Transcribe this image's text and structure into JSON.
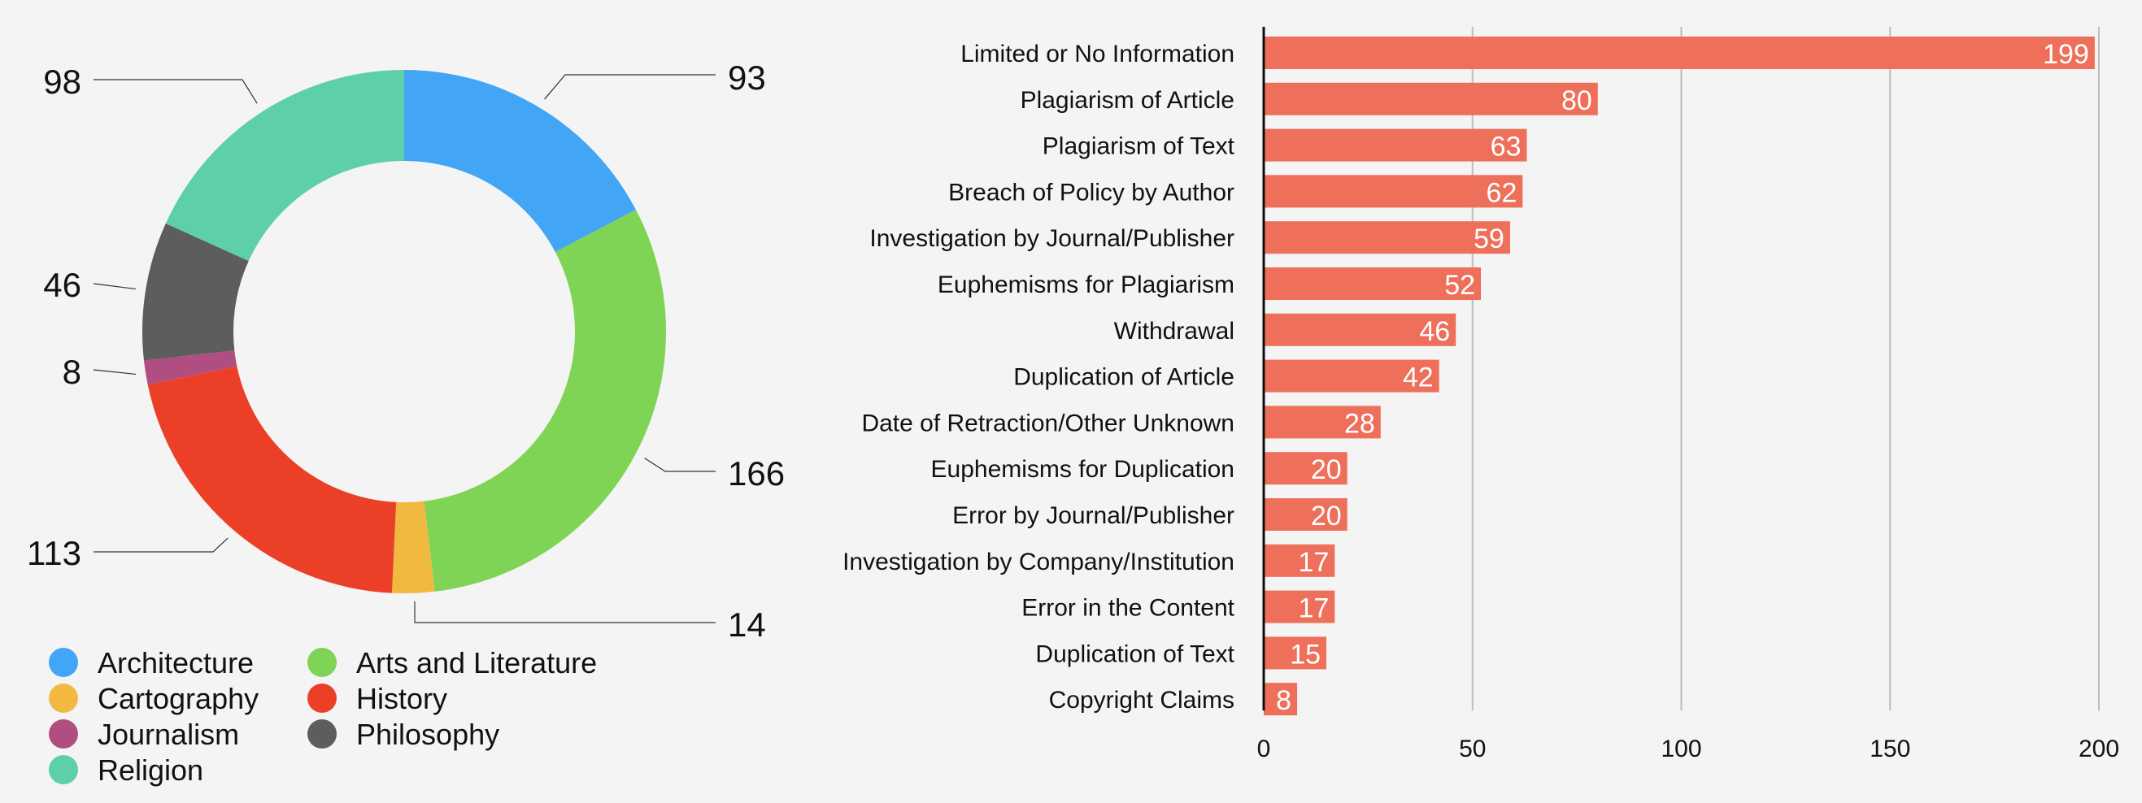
{
  "chart_data": [
    {
      "type": "pie",
      "donut": true,
      "slices": [
        {
          "label": "Architecture",
          "value": 93,
          "color": "#42a5f5"
        },
        {
          "label": "Arts and Literature",
          "value": 166,
          "color": "#80d455"
        },
        {
          "label": "Cartography",
          "value": 14,
          "color": "#f2b941"
        },
        {
          "label": "History",
          "value": 113,
          "color": "#ec3f28"
        },
        {
          "label": "Journalism",
          "value": 8,
          "color": "#b04e82"
        },
        {
          "label": "Philosophy",
          "value": 46,
          "color": "#5d5d5d"
        },
        {
          "label": "Religion",
          "value": 98,
          "color": "#5dcfab"
        }
      ],
      "legend": {
        "placement": "bottom-left",
        "columns": [
          [
            "Architecture",
            "Cartography",
            "Journalism",
            "Religion"
          ],
          [
            "Arts and Literature",
            "History",
            "Philosophy"
          ]
        ]
      }
    },
    {
      "type": "bar",
      "orientation": "horizontal",
      "categories": [
        "Limited or No Information",
        "Plagiarism of Article",
        "Plagiarism of Text",
        "Breach of Policy by Author",
        "Investigation by Journal/Publisher",
        "Euphemisms for Plagiarism",
        "Withdrawal",
        "Duplication of Article",
        "Date of Retraction/Other Unknown",
        "Euphemisms for Duplication",
        "Error by Journal/Publisher",
        "Investigation by Company/Institution",
        "Error in the Content",
        "Duplication of Text",
        "Copyright Claims"
      ],
      "values": [
        199,
        80,
        63,
        62,
        59,
        52,
        46,
        42,
        28,
        20,
        20,
        17,
        17,
        15,
        8
      ],
      "color": "#ee6f5a",
      "xlim": [
        0,
        200
      ],
      "xticks": [
        "0",
        "50",
        "100",
        "150",
        "200"
      ],
      "grid": true,
      "data_labels": true
    }
  ]
}
